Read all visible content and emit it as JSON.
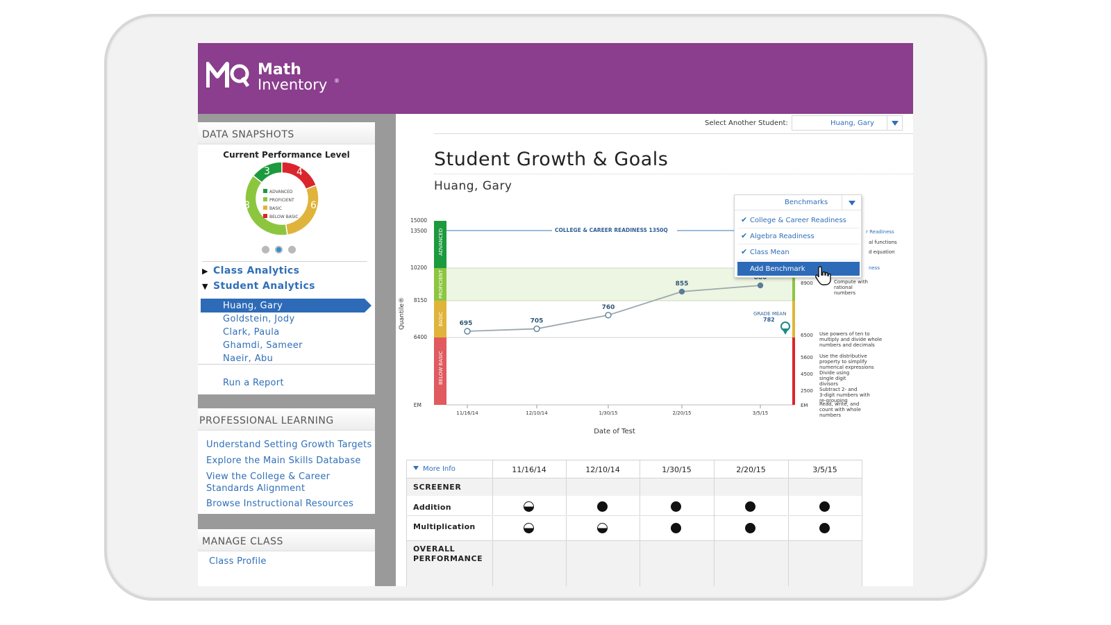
{
  "app": {
    "logo_line1": "Math",
    "logo_line2": "Inventory",
    "logo_reg": "®"
  },
  "sidebar": {
    "data_snapshots": {
      "title": "DATA SNAPSHOTS",
      "chart_title": "Current Performance Level",
      "legend": [
        "ADVANCED",
        "PROFICIENT",
        "BASIC",
        "BELOW BASIC"
      ],
      "counts": {
        "advanced": "3",
        "below_basic": "4",
        "basic": "6",
        "proficient": "8"
      },
      "colors": {
        "advanced": "#1d9a3e",
        "proficient": "#8cc63f",
        "basic": "#e0b43a",
        "below_basic": "#d9262c"
      }
    },
    "class_analytics": "Class Analytics",
    "student_analytics": "Student Analytics",
    "students": [
      "Huang, Gary",
      "Goldstein, Jody",
      "Clark, Paula",
      "Ghamdi, Sameer",
      "Naeir, Abu"
    ],
    "run_report": "Run a Report",
    "professional_learning": {
      "title": "PROFESSIONAL LEARNING",
      "links": [
        "Understand Setting Growth Targets",
        "Explore the Main Skills Database",
        "View the College & Career",
        "Standards Alignment",
        "Browse Instructional Resources"
      ]
    },
    "manage_class": {
      "title": "MANAGE CLASS",
      "links": [
        "Class Profile"
      ]
    }
  },
  "main": {
    "select_label": "Select Another Student:",
    "select_value": "Huang, Gary",
    "title": "Student Growth & Goals",
    "student": "Huang, Gary",
    "benchmarks": {
      "label": "Benchmarks",
      "items": [
        "College & Career Readiness",
        "Algebra Readiness",
        "Class Mean"
      ],
      "add": "Add Benchmark"
    }
  },
  "chart_data": {
    "type": "line",
    "xlabel": "Date of Test",
    "ylabel": "Quantile®",
    "x": [
      "11/16/14",
      "12/10/14",
      "1/30/15",
      "2/20/15",
      "3/5/15"
    ],
    "series": [
      {
        "values": [
          695,
          705,
          760,
          855,
          880
        ]
      }
    ],
    "data_labels": [
      "695",
      "705",
      "760",
      "855",
      "880"
    ],
    "y_ticks": [
      "15000",
      "13500",
      "10200",
      "8150",
      "6400",
      "EM"
    ],
    "bands": [
      "ADVANCED",
      "PROFICIENT",
      "BASIC",
      "BELOW BASIC"
    ],
    "benchmark_line": "COLLEGE & CAREER READINESS 1350Q",
    "grade_mean_label": "GRADE MEAN",
    "grade_mean_value": "782",
    "right_ticks": [
      "8900",
      "6500",
      "5600",
      "4500",
      "2500",
      "EM"
    ],
    "right_fragments": [
      "r Readiness",
      "al functions",
      "d equation",
      "ness"
    ],
    "skills": [
      "Compute with rational numbers",
      "Use powers of ten to multiply and divide whole numbers and decimals",
      "Use the distributive property to simplify numerical expressions",
      "Divide using single digit divisors",
      "Subtract 2- and 3-digit numbers with re-grouping",
      "Read, write, and count with whole numbers"
    ],
    "colors": {
      "line": "#9ba8ad",
      "point": "#5a7f95",
      "label": "#2d5572"
    }
  },
  "table": {
    "more_info": "More Info",
    "dates": [
      "11/16/14",
      "12/10/14",
      "1/30/15",
      "2/20/15",
      "3/5/15"
    ],
    "screener": "SCREENER",
    "addition": "Addition",
    "multiplication": "Multiplication",
    "overall": "OVERALL",
    "performance": "PERFORMANCE",
    "addition_marks": [
      "half",
      "full",
      "full",
      "full",
      "full"
    ],
    "multiplication_marks": [
      "half",
      "half",
      "full",
      "full",
      "full"
    ]
  }
}
